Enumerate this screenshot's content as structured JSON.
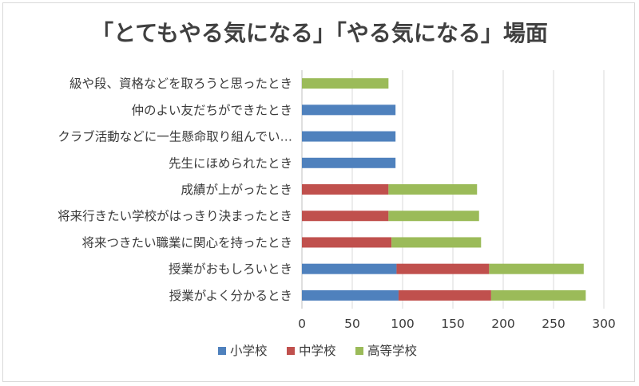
{
  "chart_data": {
    "type": "bar",
    "orientation": "horizontal",
    "stacked": true,
    "title": "「とてもやる気になる」「やる気になる」場面",
    "categories": [
      "級や段、資格などを取ろうと思ったとき",
      "仲のよい友だちができたとき",
      "クラブ活動などに一生懸命取り組んでい…",
      "先生にほめられたとき",
      "成績が上がったとき",
      "将来行きたい学校がはっきり決まったとき",
      "将来つきたい職業に関心を持ったとき",
      "授業がおもしろいとき",
      "授業がよく分かるとき"
    ],
    "series": [
      {
        "name": "小学校",
        "color": "#4f81bd",
        "values": [
          0,
          93,
          93,
          93,
          0,
          0,
          0,
          94,
          96
        ]
      },
      {
        "name": "中学校",
        "color": "#c0504d",
        "values": [
          0,
          0,
          0,
          0,
          86,
          86,
          89,
          92,
          92
        ]
      },
      {
        "name": "高等学校",
        "color": "#9bbb59",
        "values": [
          86,
          0,
          0,
          0,
          88,
          90,
          89,
          94,
          94
        ]
      }
    ],
    "xlim": [
      0,
      300
    ],
    "xticks": [
      0,
      50,
      100,
      150,
      200,
      250,
      300
    ],
    "grid": true,
    "legend_position": "bottom"
  }
}
